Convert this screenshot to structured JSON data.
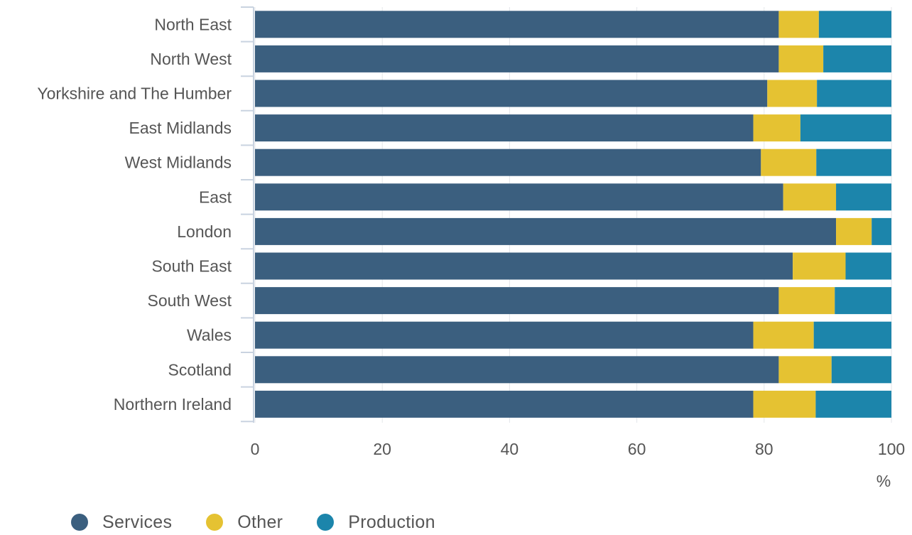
{
  "chart_data": {
    "type": "bar",
    "orientation": "horizontal",
    "stacked": true,
    "categories": [
      "North East",
      "North West",
      "Yorkshire and The Humber",
      "East Midlands",
      "West Midlands",
      "East",
      "London",
      "South East",
      "South West",
      "Wales",
      "Scotland",
      "Northern Ireland"
    ],
    "series": [
      {
        "name": "Services",
        "color": "#3b5f7f",
        "values": [
          82.3,
          82.3,
          80.5,
          78.3,
          79.5,
          83.0,
          91.3,
          84.5,
          82.3,
          78.3,
          82.3,
          78.3
        ]
      },
      {
        "name": "Other",
        "color": "#e5c232",
        "values": [
          6.3,
          7.0,
          7.8,
          7.4,
          8.7,
          8.3,
          5.6,
          8.3,
          8.8,
          9.5,
          8.3,
          9.8
        ]
      },
      {
        "name": "Production",
        "color": "#1c85ab",
        "values": [
          11.4,
          10.7,
          11.7,
          14.3,
          11.8,
          8.7,
          3.1,
          7.2,
          8.9,
          12.2,
          9.4,
          11.9
        ]
      }
    ],
    "xlim": [
      0,
      100
    ],
    "xticks": [
      "0",
      "20",
      "40",
      "60",
      "80",
      "100"
    ],
    "xunit": "%",
    "title": "",
    "grid": true,
    "legend_position": "bottom-left"
  }
}
